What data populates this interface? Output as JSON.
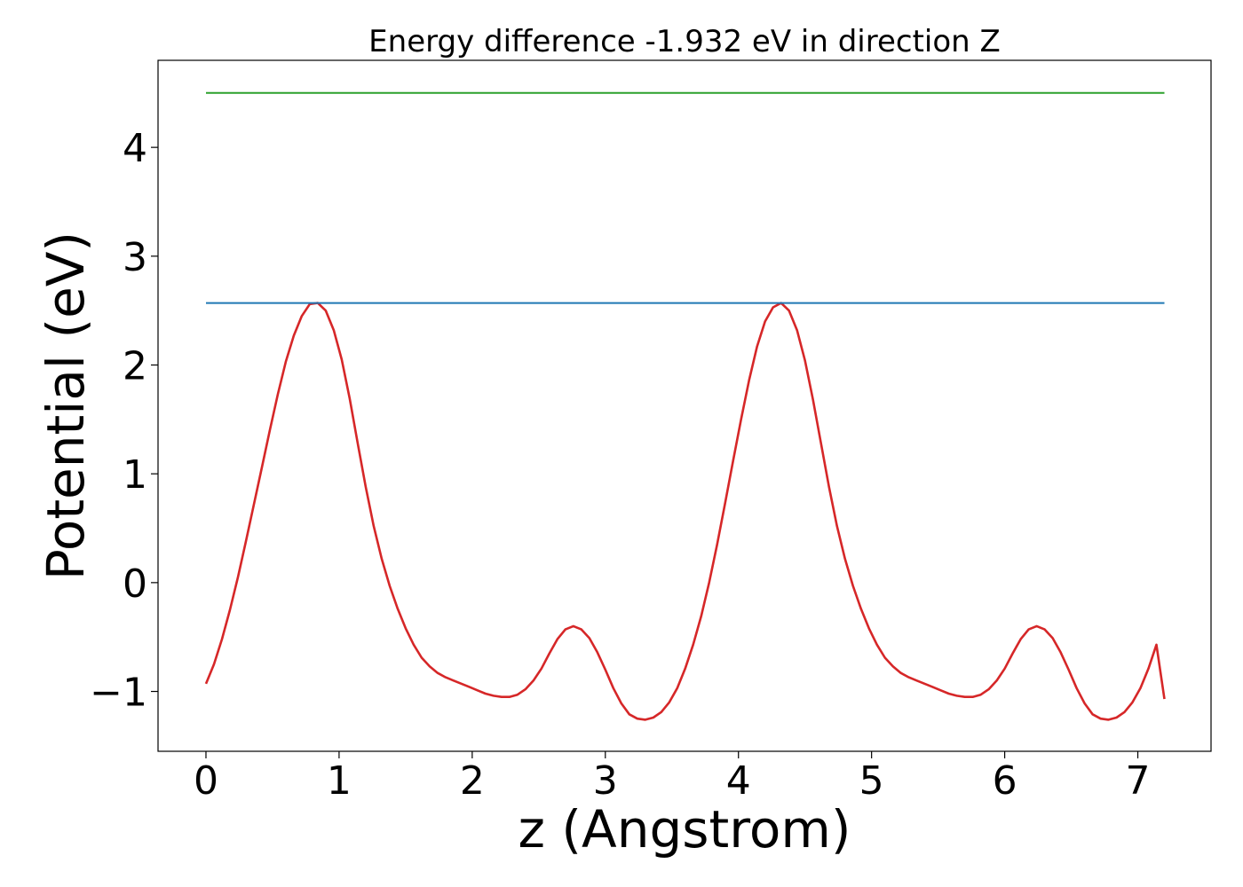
{
  "chart_data": {
    "type": "line",
    "title": "Energy difference -1.932 eV in direction Z",
    "xlabel": "z (Angstrom)",
    "ylabel": "Potential (eV)",
    "xlim": [
      -0.36,
      7.55
    ],
    "ylim": [
      -1.55,
      4.8
    ],
    "grid": false,
    "xticks": [
      {
        "value": 0,
        "label": "0"
      },
      {
        "value": 1,
        "label": "1"
      },
      {
        "value": 2,
        "label": "2"
      },
      {
        "value": 3,
        "label": "3"
      },
      {
        "value": 4,
        "label": "4"
      },
      {
        "value": 5,
        "label": "5"
      },
      {
        "value": 6,
        "label": "6"
      },
      {
        "value": 7,
        "label": "7"
      }
    ],
    "yticks": [
      {
        "value": -1,
        "label": "−1"
      },
      {
        "value": 0,
        "label": "0"
      },
      {
        "value": 1,
        "label": "1"
      },
      {
        "value": 2,
        "label": "2"
      },
      {
        "value": 3,
        "label": "3"
      },
      {
        "value": 4,
        "label": "4"
      }
    ],
    "series": [
      {
        "color": "#d62728",
        "x": [
          0.0,
          0.06,
          0.12,
          0.18,
          0.24,
          0.3,
          0.36,
          0.42,
          0.48,
          0.54,
          0.6,
          0.66,
          0.72,
          0.78,
          0.84,
          0.9,
          0.96,
          1.02,
          1.08,
          1.14,
          1.2,
          1.26,
          1.32,
          1.38,
          1.44,
          1.5,
          1.56,
          1.62,
          1.68,
          1.74,
          1.8,
          1.86,
          1.92,
          1.98,
          2.04,
          2.1,
          2.16,
          2.22,
          2.28,
          2.34,
          2.4,
          2.46,
          2.52,
          2.58,
          2.64,
          2.7,
          2.76,
          2.82,
          2.88,
          2.94,
          3.0,
          3.06,
          3.12,
          3.18,
          3.24,
          3.3,
          3.36,
          3.42,
          3.48,
          3.54,
          3.6,
          3.66,
          3.72,
          3.78,
          3.84,
          3.9,
          3.96,
          4.02,
          4.08,
          4.14,
          4.2,
          4.26,
          4.32,
          4.38,
          4.44,
          4.5,
          4.56,
          4.62,
          4.68,
          4.74,
          4.8,
          4.86,
          4.92,
          4.98,
          5.04,
          5.1,
          5.16,
          5.22,
          5.28,
          5.34,
          5.4,
          5.46,
          5.52,
          5.58,
          5.64,
          5.7,
          5.76,
          5.82,
          5.88,
          5.94,
          6.0,
          6.06,
          6.12,
          6.18,
          6.24,
          6.3,
          6.36,
          6.42,
          6.48,
          6.54,
          6.6,
          6.66,
          6.72,
          6.78,
          6.84,
          6.9,
          6.96,
          7.02,
          7.08,
          7.14,
          7.2
        ],
        "y": [
          -0.93,
          -0.75,
          -0.52,
          -0.25,
          0.05,
          0.38,
          0.72,
          1.06,
          1.4,
          1.73,
          2.03,
          2.27,
          2.45,
          2.56,
          2.57,
          2.5,
          2.32,
          2.05,
          1.69,
          1.28,
          0.88,
          0.52,
          0.22,
          -0.03,
          -0.24,
          -0.42,
          -0.57,
          -0.69,
          -0.77,
          -0.83,
          -0.87,
          -0.9,
          -0.93,
          -0.96,
          -0.99,
          -1.02,
          -1.04,
          -1.05,
          -1.05,
          -1.03,
          -0.98,
          -0.9,
          -0.79,
          -0.65,
          -0.52,
          -0.43,
          -0.4,
          -0.43,
          -0.51,
          -0.64,
          -0.8,
          -0.97,
          -1.11,
          -1.21,
          -1.25,
          -1.26,
          -1.24,
          -1.19,
          -1.1,
          -0.97,
          -0.79,
          -0.57,
          -0.31,
          0.0,
          0.35,
          0.73,
          1.12,
          1.5,
          1.86,
          2.17,
          2.4,
          2.53,
          2.57,
          2.5,
          2.32,
          2.04,
          1.68,
          1.28,
          0.88,
          0.52,
          0.22,
          -0.03,
          -0.24,
          -0.42,
          -0.57,
          -0.69,
          -0.77,
          -0.83,
          -0.87,
          -0.9,
          -0.93,
          -0.96,
          -0.99,
          -1.02,
          -1.04,
          -1.05,
          -1.05,
          -1.03,
          -0.98,
          -0.9,
          -0.79,
          -0.65,
          -0.52,
          -0.43,
          -0.4,
          -0.43,
          -0.51,
          -0.64,
          -0.8,
          -0.97,
          -1.11,
          -1.21,
          -1.25,
          -1.26,
          -1.24,
          -1.19,
          -1.1,
          -0.97,
          -0.79,
          -0.57,
          -1.07
        ]
      },
      {
        "color": "#1f77b4",
        "x": [
          0.0,
          7.2
        ],
        "y": [
          2.57,
          2.57
        ]
      },
      {
        "color": "#2ca02c",
        "x": [
          0.0,
          7.2
        ],
        "y": [
          4.5,
          4.5
        ]
      }
    ]
  }
}
